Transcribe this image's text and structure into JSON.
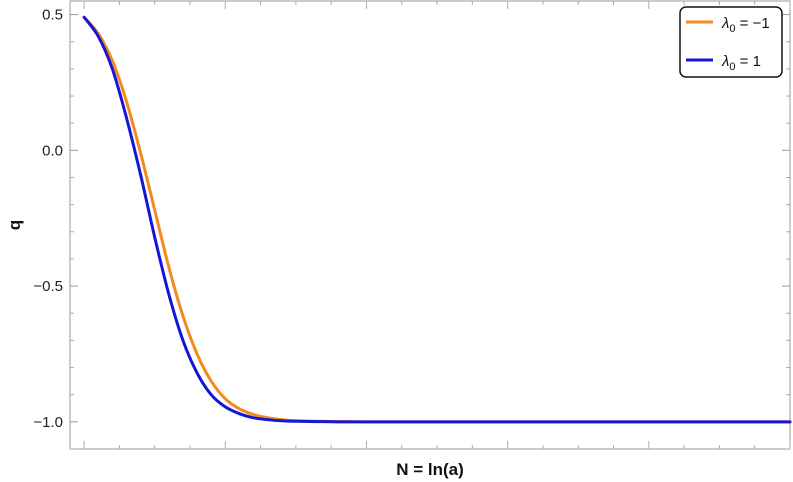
{
  "chart_data": {
    "type": "line",
    "title": "",
    "xlabel": "N = ln(a)",
    "ylabel": "q",
    "xlim": [
      -0.2,
      10.0
    ],
    "ylim": [
      -1.1,
      0.55
    ],
    "x_ticks_labeled": false,
    "y_ticks": [
      {
        "value": 0.5,
        "label": "0.5"
      },
      {
        "value": 0.0,
        "label": "0.0"
      },
      {
        "value": -0.5,
        "label": "−0.5"
      },
      {
        "value": -1.0,
        "label": "−1.0"
      }
    ],
    "legend_placement": "top-right",
    "grid": false,
    "series": [
      {
        "name": "λ0 = −1",
        "name_parts": {
          "symbol": "λ",
          "sub": "0",
          "rest": " = −1"
        },
        "color": "#f28a1e",
        "x": [
          0.0,
          0.2,
          0.4,
          0.6,
          0.8,
          1.0,
          1.2,
          1.4,
          1.6,
          1.8,
          2.0,
          2.2,
          2.4,
          2.6,
          2.8,
          3.0,
          3.3,
          3.6,
          4.0,
          5.0,
          6.0,
          8.0,
          10.0
        ],
        "y": [
          0.49,
          0.43,
          0.33,
          0.18,
          -0.01,
          -0.22,
          -0.43,
          -0.61,
          -0.75,
          -0.85,
          -0.915,
          -0.952,
          -0.973,
          -0.985,
          -0.992,
          -0.996,
          -0.998,
          -0.999,
          -1.0,
          -1.0,
          -1.0,
          -1.0,
          -1.0
        ]
      },
      {
        "name": "λ0 = 1",
        "name_parts": {
          "symbol": "λ",
          "sub": "0",
          "rest": " = 1"
        },
        "color": "#1515d6",
        "x": [
          0.0,
          0.2,
          0.4,
          0.6,
          0.8,
          1.0,
          1.2,
          1.4,
          1.6,
          1.8,
          2.0,
          2.2,
          2.4,
          2.6,
          2.8,
          3.0,
          3.3,
          3.6,
          4.0,
          5.0,
          6.0,
          8.0,
          10.0
        ],
        "y": [
          0.49,
          0.42,
          0.3,
          0.12,
          -0.09,
          -0.32,
          -0.53,
          -0.7,
          -0.82,
          -0.9,
          -0.945,
          -0.97,
          -0.985,
          -0.992,
          -0.996,
          -0.998,
          -0.999,
          -1.0,
          -1.0,
          -1.0,
          -1.0,
          -1.0,
          -1.0
        ]
      }
    ]
  }
}
